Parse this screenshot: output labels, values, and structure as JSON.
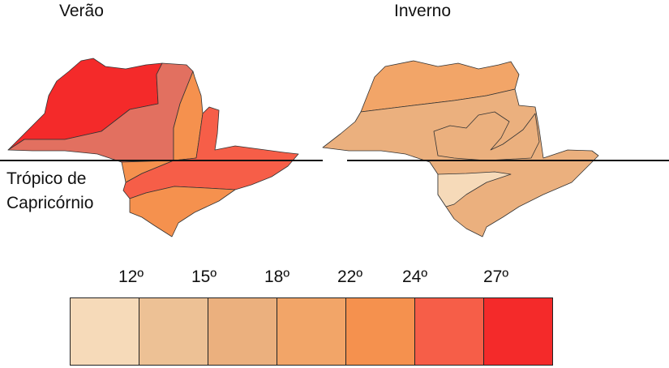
{
  "maps": {
    "summer_title": "Verão",
    "winter_title": "Inverno",
    "tropic_label_line1": "Trópico de",
    "tropic_label_line2": "Capricórnio"
  },
  "legend": {
    "ticks": [
      "12º",
      "15º",
      "18º",
      "22º",
      "24º",
      "27º"
    ],
    "colors": [
      "#f6dab9",
      "#edc195",
      "#ebb07e",
      "#f2a568",
      "#f5914e",
      "#f65e48",
      "#f42a2a"
    ]
  }
}
